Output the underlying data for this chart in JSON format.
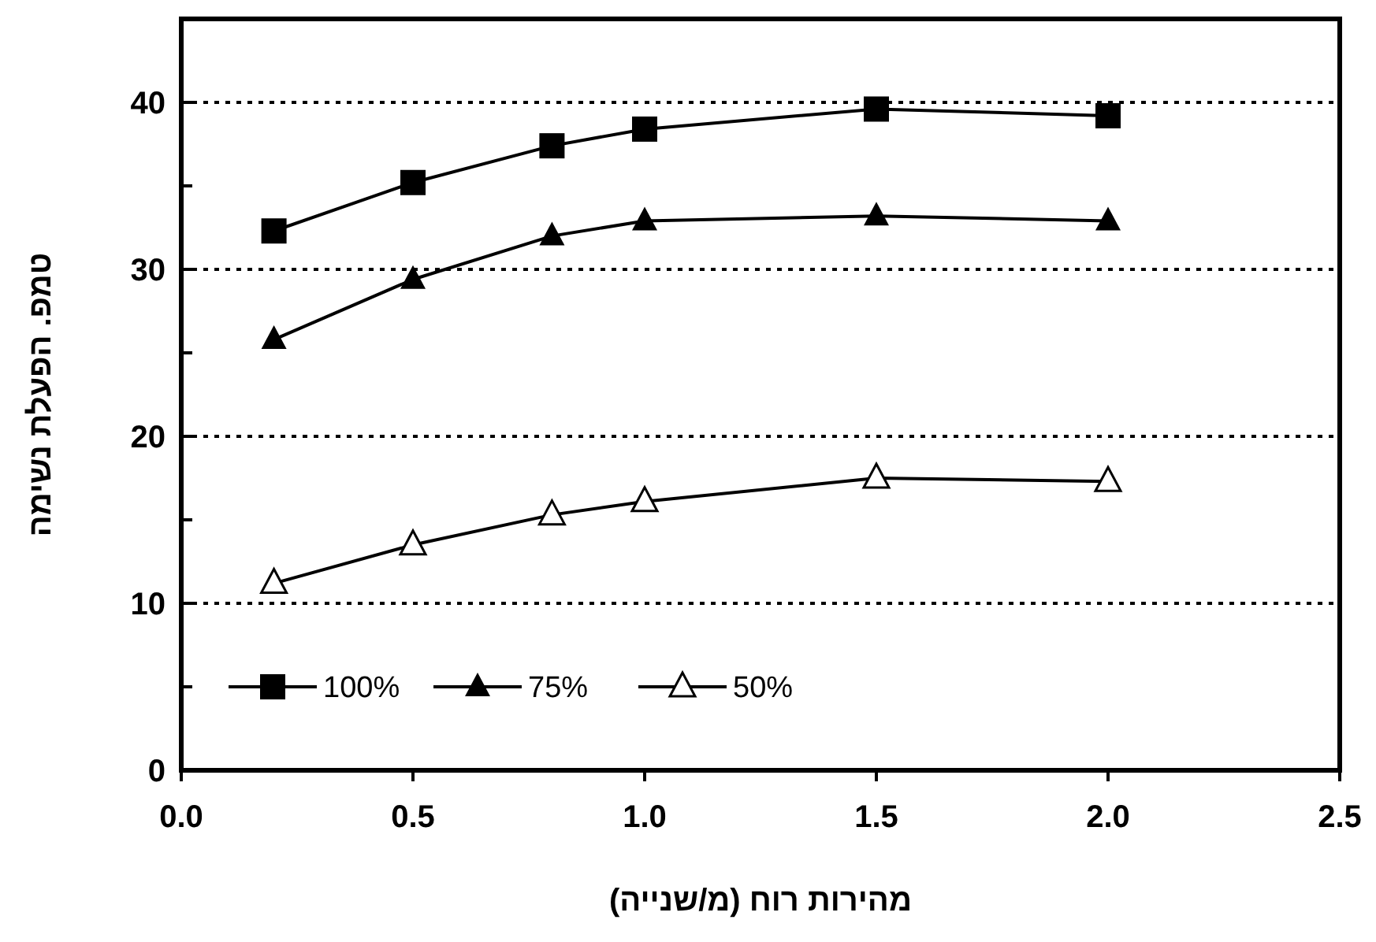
{
  "chart_data": {
    "type": "line",
    "xlabel": "מהירות רוח (מ/שנייה)",
    "ylabel": "טמפ. הפעלת נשימה",
    "xlim": [
      0,
      2.5
    ],
    "xticks": [
      {
        "value": 0,
        "label": "0.0"
      },
      {
        "value": 0.5,
        "label": "0.5"
      },
      {
        "value": 1,
        "label": "1.0"
      },
      {
        "value": 1.5,
        "label": "1.5"
      },
      {
        "value": 2,
        "label": "2.0"
      },
      {
        "value": 2.5,
        "label": "2.5"
      }
    ],
    "ylim": [
      0,
      45
    ],
    "yticks": [
      0,
      {
        "value": 5,
        "label": null
      },
      10,
      {
        "value": 15,
        "label": null
      },
      20,
      {
        "value": 25,
        "label": null
      },
      30,
      {
        "value": 35,
        "label": null
      },
      40,
      {
        "value": 45,
        "label": null
      }
    ],
    "grid": "y",
    "legend": "bottom left",
    "line_style": "solid",
    "x": [
      0.2,
      0.5,
      0.8,
      1.0,
      1.5,
      2.0
    ],
    "series": [
      {
        "name": "100%",
        "color": "#000000",
        "marker": "square",
        "values": [
          32.3,
          35.2,
          37.4,
          38.4,
          39.6,
          39.2
        ]
      },
      {
        "name": "75%",
        "color": "#000000",
        "marker": "triangle",
        "values": [
          25.8,
          29.4,
          32.0,
          32.9,
          33.2,
          32.9
        ]
      },
      {
        "name": "50%",
        "color": "#000000",
        "marker": "triangle-open",
        "values": [
          11.2,
          13.5,
          15.3,
          16.1,
          17.5,
          17.3
        ]
      }
    ]
  }
}
